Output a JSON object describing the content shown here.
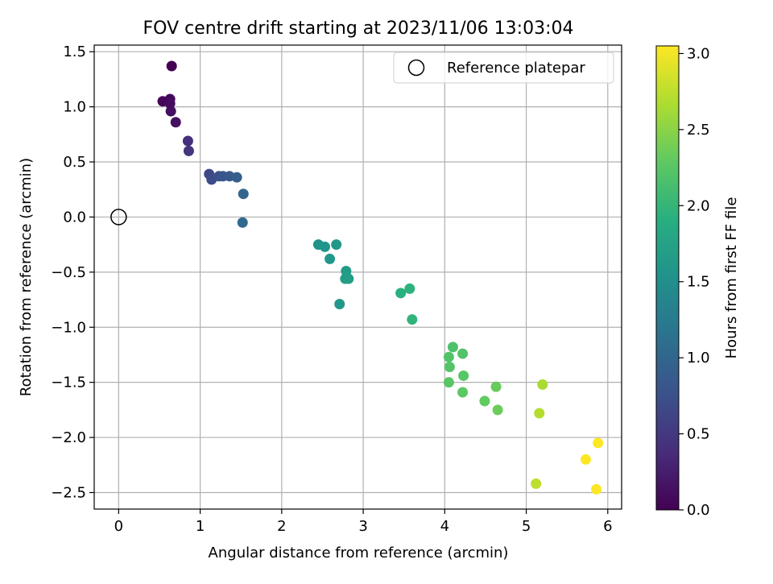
{
  "chart_data": {
    "type": "scatter",
    "title": "FOV centre drift starting at 2023/11/06 13:03:04",
    "xlabel": "Angular distance from reference (arcmin)",
    "ylabel": "Rotation from reference (arcmin)",
    "xlim": [
      -0.3,
      6.17
    ],
    "ylim": [
      -2.65,
      1.56
    ],
    "xticks": [
      0,
      1,
      2,
      3,
      4,
      5,
      6
    ],
    "xtick_labels": [
      "0",
      "1",
      "2",
      "3",
      "4",
      "5",
      "6"
    ],
    "yticks": [
      1.5,
      1.0,
      0.5,
      0.0,
      -0.5,
      -1.0,
      -1.5,
      -2.0,
      -2.5
    ],
    "ytick_labels": [
      "1.5",
      "1.0",
      "0.5",
      "0.0",
      "−0.5",
      "−1.0",
      "−1.5",
      "−2.0",
      "−2.5"
    ],
    "grid": true,
    "legend": {
      "position": "top-right",
      "entries": [
        "Reference platepar"
      ]
    },
    "reference_point": {
      "name": "Reference platepar",
      "x": 0.0,
      "y": 0.0
    },
    "colorbar": {
      "label": "Hours from first FF file",
      "colormap": "viridis",
      "range": [
        0.0,
        3.05
      ],
      "ticks": [
        0.0,
        0.5,
        1.0,
        1.5,
        2.0,
        2.5,
        3.0
      ],
      "tick_labels": [
        "0.0",
        "0.5",
        "1.0",
        "1.5",
        "2.0",
        "2.5",
        "3.0"
      ]
    },
    "points": [
      {
        "x": 0.65,
        "y": 1.37,
        "c": 0.0
      },
      {
        "x": 0.54,
        "y": 1.05,
        "c": 0.05
      },
      {
        "x": 0.63,
        "y": 1.07,
        "c": 0.07
      },
      {
        "x": 0.63,
        "y": 1.03,
        "c": 0.09
      },
      {
        "x": 0.64,
        "y": 0.96,
        "c": 0.11
      },
      {
        "x": 0.7,
        "y": 0.86,
        "c": 0.13
      },
      {
        "x": 0.85,
        "y": 0.69,
        "c": 0.4
      },
      {
        "x": 0.86,
        "y": 0.6,
        "c": 0.45
      },
      {
        "x": 1.11,
        "y": 0.39,
        "c": 0.65
      },
      {
        "x": 1.14,
        "y": 0.34,
        "c": 0.7
      },
      {
        "x": 1.23,
        "y": 0.37,
        "c": 0.75
      },
      {
        "x": 1.28,
        "y": 0.37,
        "c": 0.8
      },
      {
        "x": 1.36,
        "y": 0.37,
        "c": 0.85
      },
      {
        "x": 1.45,
        "y": 0.36,
        "c": 0.9
      },
      {
        "x": 1.53,
        "y": 0.21,
        "c": 1.0
      },
      {
        "x": 1.52,
        "y": -0.05,
        "c": 1.05
      },
      {
        "x": 2.45,
        "y": -0.25,
        "c": 1.55
      },
      {
        "x": 2.53,
        "y": -0.27,
        "c": 1.58
      },
      {
        "x": 2.67,
        "y": -0.25,
        "c": 1.62
      },
      {
        "x": 2.59,
        "y": -0.38,
        "c": 1.6
      },
      {
        "x": 2.79,
        "y": -0.49,
        "c": 1.65
      },
      {
        "x": 2.78,
        "y": -0.56,
        "c": 1.67
      },
      {
        "x": 2.82,
        "y": -0.56,
        "c": 1.69
      },
      {
        "x": 2.71,
        "y": -0.79,
        "c": 1.62
      },
      {
        "x": 3.46,
        "y": -0.69,
        "c": 1.92
      },
      {
        "x": 3.57,
        "y": -0.65,
        "c": 1.95
      },
      {
        "x": 3.6,
        "y": -0.93,
        "c": 1.98
      },
      {
        "x": 4.1,
        "y": -1.18,
        "c": 2.18
      },
      {
        "x": 4.05,
        "y": -1.27,
        "c": 2.2
      },
      {
        "x": 4.22,
        "y": -1.24,
        "c": 2.2
      },
      {
        "x": 4.06,
        "y": -1.36,
        "c": 2.22
      },
      {
        "x": 4.23,
        "y": -1.44,
        "c": 2.24
      },
      {
        "x": 4.05,
        "y": -1.5,
        "c": 2.25
      },
      {
        "x": 4.22,
        "y": -1.59,
        "c": 2.27
      },
      {
        "x": 4.49,
        "y": -1.67,
        "c": 2.3
      },
      {
        "x": 4.63,
        "y": -1.54,
        "c": 2.33
      },
      {
        "x": 4.65,
        "y": -1.75,
        "c": 2.35
      },
      {
        "x": 5.2,
        "y": -1.52,
        "c": 2.65
      },
      {
        "x": 5.16,
        "y": -1.78,
        "c": 2.7
      },
      {
        "x": 5.12,
        "y": -2.42,
        "c": 2.75
      },
      {
        "x": 5.88,
        "y": -2.05,
        "c": 3.05
      },
      {
        "x": 5.73,
        "y": -2.2,
        "c": 3.05
      },
      {
        "x": 5.86,
        "y": -2.47,
        "c": 3.05
      }
    ]
  }
}
